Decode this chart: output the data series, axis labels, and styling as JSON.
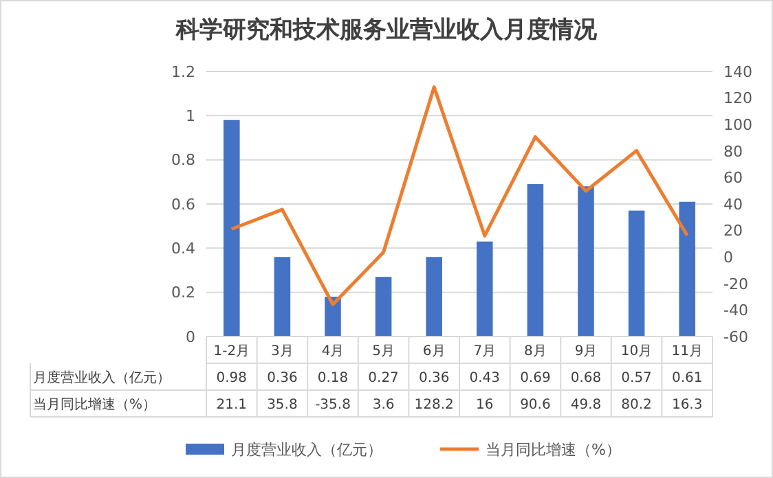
{
  "chart_data": {
    "type": "bar",
    "title": "科学研究和技术服务业营业收入月度情况",
    "categories": [
      "1-2月",
      "3月",
      "4月",
      "5月",
      "6月",
      "7月",
      "8月",
      "9月",
      "10月",
      "11月"
    ],
    "series": [
      {
        "name": "月度营业收入（亿元）",
        "color": "#4472c4",
        "values": [
          0.98,
          0.36,
          0.18,
          0.27,
          0.36,
          0.43,
          0.69,
          0.68,
          0.57,
          0.61
        ]
      },
      {
        "name": "当月同比增速（%）",
        "type": "line",
        "axis": "y2",
        "color": "#ed7d31",
        "values": [
          21.1,
          35.8,
          -35.8,
          3.6,
          128.2,
          16,
          90.6,
          49.8,
          80.2,
          16.3
        ]
      }
    ],
    "ylim": [
      0,
      1.2
    ],
    "yticks": [
      0,
      0.2,
      0.4,
      0.6,
      0.8,
      1,
      1.2
    ],
    "y2lim": [
      -60,
      140
    ],
    "y2ticks": [
      -60,
      -40,
      -20,
      0,
      20,
      40,
      60,
      80,
      100,
      120,
      140
    ],
    "grid": "y",
    "legend": "bottom",
    "data_labels": true,
    "line_style": "solid",
    "marker": "none"
  }
}
